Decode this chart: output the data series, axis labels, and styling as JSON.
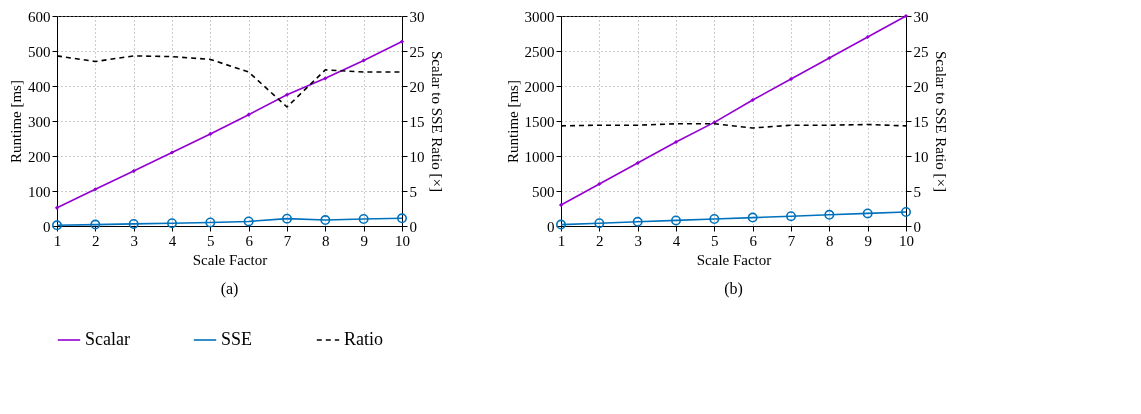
{
  "chart_data": [
    {
      "type": "line",
      "title": "(a)",
      "xlabel": "Scale Factor",
      "ylabel": "Runtime [ms]",
      "y2label": "Scalar to SSE Ratio [×]",
      "x": [
        1,
        2,
        3,
        4,
        5,
        6,
        7,
        8,
        9,
        10
      ],
      "xlim": [
        1,
        10
      ],
      "xticks": [
        1,
        2,
        3,
        4,
        5,
        6,
        7,
        8,
        9,
        10
      ],
      "ylim": [
        0,
        600
      ],
      "yticks": [
        0,
        100,
        200,
        300,
        400,
        500,
        600
      ],
      "y2lim": [
        0,
        30
      ],
      "y2ticks": [
        0,
        5,
        10,
        15,
        20,
        25,
        30
      ],
      "grid": true,
      "legend": "bottom",
      "series": [
        {
          "name": "Scalar",
          "color": "#9400d3",
          "marker": "diamond",
          "line_style": "solid",
          "values": [
            52,
            105,
            157,
            210,
            263,
            318,
            375,
            422,
            473,
            527
          ]
        },
        {
          "name": "SSE",
          "color": "#0072bd",
          "marker": "circle",
          "line_style": "solid",
          "values": [
            2,
            4,
            6,
            8,
            10,
            13,
            21,
            17,
            20,
            22
          ]
        },
        {
          "name": "Ratio",
          "color": "#000000",
          "marker": "none",
          "line_style": "dashed",
          "axis": "y2",
          "values": [
            24.3,
            23.5,
            24.3,
            24.2,
            23.8,
            22,
            17,
            22.3,
            22,
            22
          ]
        }
      ]
    },
    {
      "type": "line",
      "title": "(b)",
      "xlabel": "Scale Factor",
      "ylabel": "Runtime [ms]",
      "y2label": "Scalar to SSE Ratio [×]",
      "x": [
        1,
        2,
        3,
        4,
        5,
        6,
        7,
        8,
        9,
        10
      ],
      "xlim": [
        1,
        10
      ],
      "xticks": [
        1,
        2,
        3,
        4,
        5,
        6,
        7,
        8,
        9,
        10
      ],
      "ylim": [
        0,
        3000
      ],
      "yticks": [
        0,
        500,
        1000,
        1500,
        2000,
        2500,
        3000
      ],
      "y2lim": [
        0,
        30
      ],
      "y2ticks": [
        0,
        5,
        10,
        15,
        20,
        25,
        30
      ],
      "grid": true,
      "legend": "bottom",
      "series": [
        {
          "name": "Scalar",
          "color": "#9400d3",
          "marker": "diamond",
          "line_style": "solid",
          "values": [
            300,
            600,
            900,
            1200,
            1480,
            1800,
            2100,
            2400,
            2700,
            3000
          ]
        },
        {
          "name": "SSE",
          "color": "#0072bd",
          "marker": "circle",
          "line_style": "solid",
          "values": [
            20,
            40,
            60,
            80,
            100,
            120,
            140,
            160,
            180,
            200
          ]
        },
        {
          "name": "Ratio",
          "color": "#000000",
          "marker": "none",
          "line_style": "dashed",
          "axis": "y2",
          "values": [
            14.3,
            14.4,
            14.4,
            14.6,
            14.6,
            14,
            14.4,
            14.4,
            14.5,
            14.3
          ]
        }
      ]
    }
  ]
}
